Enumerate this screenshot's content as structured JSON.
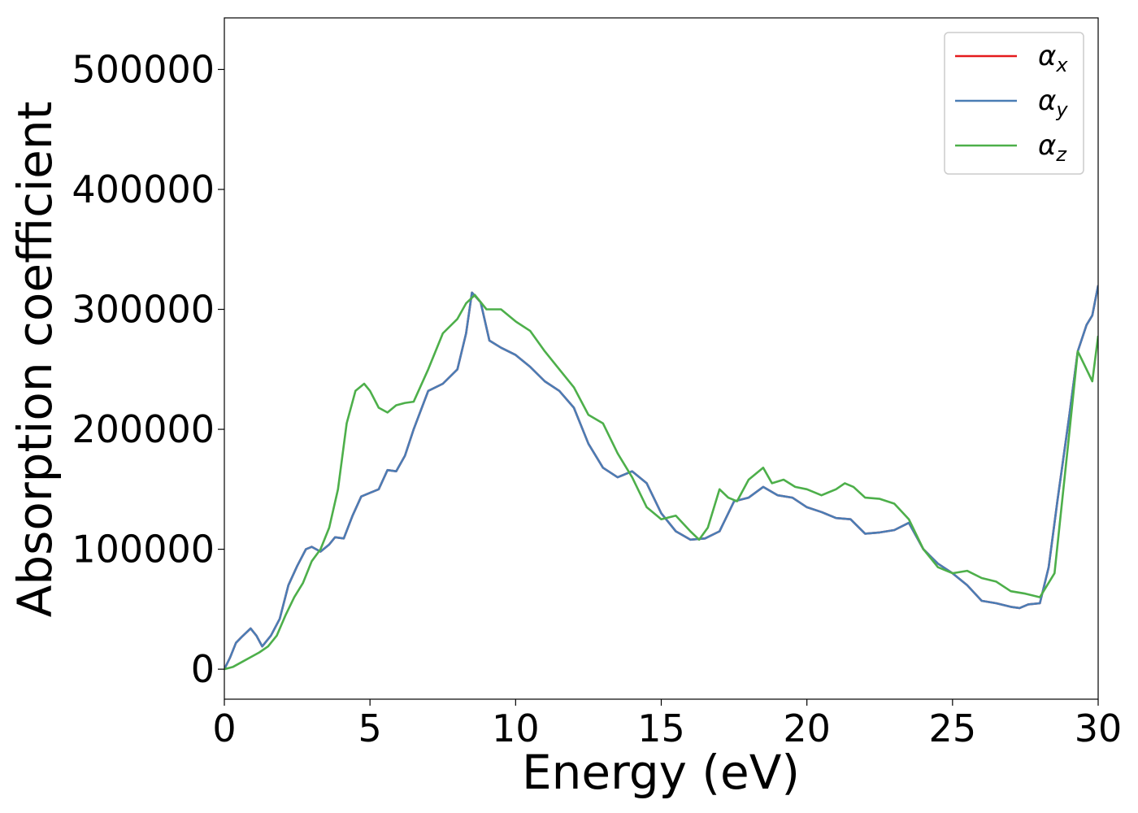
{
  "chart_data": {
    "type": "line",
    "title": "",
    "xlabel": "Energy (eV)",
    "ylabel": "Absorption coefficient",
    "xlim": [
      0,
      30
    ],
    "ylim": [
      -25000,
      543000
    ],
    "xticks": [
      0,
      5,
      10,
      15,
      20,
      25,
      30
    ],
    "yticks": [
      0,
      100000,
      200000,
      300000,
      400000,
      500000
    ],
    "xtick_labels": [
      "0",
      "5",
      "10",
      "15",
      "20",
      "25",
      "30"
    ],
    "ytick_labels": [
      "0",
      "100000",
      "200000",
      "300000",
      "400000",
      "500000"
    ],
    "grid": false,
    "legend_position": "top-right",
    "series": [
      {
        "name": "α_x",
        "legend_main": "α",
        "legend_sub": "x",
        "color": "#e41a1c",
        "x": [
          0,
          0.2,
          0.4,
          0.6,
          0.9,
          1.1,
          1.3,
          1.6,
          1.9,
          2.2,
          2.5,
          2.8,
          3.0,
          3.3,
          3.6,
          3.8,
          4.1,
          4.4,
          4.7,
          5.0,
          5.3,
          5.6,
          5.9,
          6.2,
          6.5,
          7.0,
          7.5,
          8.0,
          8.3,
          8.5,
          8.8,
          9.1,
          9.5,
          10.0,
          10.5,
          11.0,
          11.5,
          12.0,
          12.5,
          13.0,
          13.5,
          14.0,
          14.5,
          15.0,
          15.5,
          16.0,
          16.5,
          17.0,
          17.5,
          18.0,
          18.5,
          19.0,
          19.5,
          20.0,
          20.5,
          21.0,
          21.5,
          22.0,
          22.5,
          23.0,
          23.5,
          24.0,
          24.5,
          25.0,
          25.5,
          26.0,
          26.5,
          27.0,
          27.3,
          27.6,
          28.0,
          28.3,
          28.6,
          29.0,
          29.3,
          29.6,
          29.8,
          30.0
        ],
        "y": [
          0,
          10000,
          22000,
          27000,
          34000,
          28000,
          19000,
          28000,
          42000,
          70000,
          86000,
          100000,
          102000,
          98000,
          104000,
          110000,
          109000,
          128000,
          144000,
          147000,
          150000,
          166000,
          165000,
          178000,
          200000,
          232000,
          238000,
          250000,
          280000,
          314000,
          306000,
          274000,
          268000,
          262000,
          252000,
          240000,
          232000,
          218000,
          188000,
          168000,
          160000,
          165000,
          155000,
          130000,
          115000,
          108000,
          109000,
          115000,
          140000,
          143000,
          152000,
          145000,
          143000,
          135000,
          131000,
          126000,
          125000,
          113000,
          114000,
          116000,
          122000,
          100000,
          88000,
          80000,
          70000,
          57000,
          55000,
          52000,
          51000,
          54000,
          55000,
          85000,
          140000,
          210000,
          265000,
          287000,
          295000,
          320000
        ]
      },
      {
        "name": "α_y",
        "legend_main": "α",
        "legend_sub": "y",
        "color": "#4a7db5",
        "x": [
          0,
          0.2,
          0.4,
          0.6,
          0.9,
          1.1,
          1.3,
          1.6,
          1.9,
          2.2,
          2.5,
          2.8,
          3.0,
          3.3,
          3.6,
          3.8,
          4.1,
          4.4,
          4.7,
          5.0,
          5.3,
          5.6,
          5.9,
          6.2,
          6.5,
          7.0,
          7.5,
          8.0,
          8.3,
          8.5,
          8.8,
          9.1,
          9.5,
          10.0,
          10.5,
          11.0,
          11.5,
          12.0,
          12.5,
          13.0,
          13.5,
          14.0,
          14.5,
          15.0,
          15.5,
          16.0,
          16.5,
          17.0,
          17.5,
          18.0,
          18.5,
          19.0,
          19.5,
          20.0,
          20.5,
          21.0,
          21.5,
          22.0,
          22.5,
          23.0,
          23.5,
          24.0,
          24.5,
          25.0,
          25.5,
          26.0,
          26.5,
          27.0,
          27.3,
          27.6,
          28.0,
          28.3,
          28.6,
          29.0,
          29.3,
          29.6,
          29.8,
          30.0
        ],
        "y": [
          0,
          10000,
          22000,
          27000,
          34000,
          28000,
          19000,
          28000,
          42000,
          70000,
          86000,
          100000,
          102000,
          98000,
          104000,
          110000,
          109000,
          128000,
          144000,
          147000,
          150000,
          166000,
          165000,
          178000,
          200000,
          232000,
          238000,
          250000,
          280000,
          314000,
          306000,
          274000,
          268000,
          262000,
          252000,
          240000,
          232000,
          218000,
          188000,
          168000,
          160000,
          165000,
          155000,
          130000,
          115000,
          108000,
          109000,
          115000,
          140000,
          143000,
          152000,
          145000,
          143000,
          135000,
          131000,
          126000,
          125000,
          113000,
          114000,
          116000,
          122000,
          100000,
          88000,
          80000,
          70000,
          57000,
          55000,
          52000,
          51000,
          54000,
          55000,
          85000,
          140000,
          210000,
          265000,
          287000,
          295000,
          320000
        ]
      },
      {
        "name": "α_z",
        "legend_main": "α",
        "legend_sub": "z",
        "color": "#4daf4a",
        "x": [
          0,
          0.3,
          0.6,
          0.9,
          1.2,
          1.5,
          1.8,
          2.1,
          2.4,
          2.7,
          3.0,
          3.3,
          3.6,
          3.9,
          4.2,
          4.5,
          4.8,
          5.0,
          5.3,
          5.6,
          5.9,
          6.2,
          6.5,
          7.0,
          7.5,
          8.0,
          8.3,
          8.6,
          9.0,
          9.5,
          10.0,
          10.5,
          11.0,
          11.5,
          12.0,
          12.5,
          13.0,
          13.5,
          14.0,
          14.5,
          15.0,
          15.5,
          16.0,
          16.3,
          16.6,
          17.0,
          17.3,
          17.6,
          18.0,
          18.5,
          18.8,
          19.2,
          19.6,
          20.0,
          20.5,
          21.0,
          21.3,
          21.6,
          22.0,
          22.5,
          23.0,
          23.5,
          24.0,
          24.5,
          25.0,
          25.5,
          26.0,
          26.5,
          27.0,
          27.5,
          28.0,
          28.5,
          29.0,
          29.3,
          29.6,
          29.8,
          30.0
        ],
        "y": [
          0,
          2000,
          6000,
          10000,
          14000,
          19000,
          28000,
          45000,
          60000,
          72000,
          90000,
          100000,
          118000,
          150000,
          205000,
          232000,
          238000,
          232000,
          218000,
          214000,
          220000,
          222000,
          223000,
          250000,
          280000,
          292000,
          305000,
          312000,
          300000,
          300000,
          290000,
          282000,
          265000,
          250000,
          235000,
          212000,
          205000,
          180000,
          160000,
          135000,
          125000,
          128000,
          115000,
          108000,
          118000,
          150000,
          143000,
          140000,
          158000,
          168000,
          155000,
          158000,
          152000,
          150000,
          145000,
          150000,
          155000,
          152000,
          143000,
          142000,
          138000,
          125000,
          100000,
          85000,
          80000,
          82000,
          76000,
          73000,
          65000,
          63000,
          60000,
          80000,
          195000,
          265000,
          250000,
          240000,
          278000
        ]
      }
    ]
  }
}
